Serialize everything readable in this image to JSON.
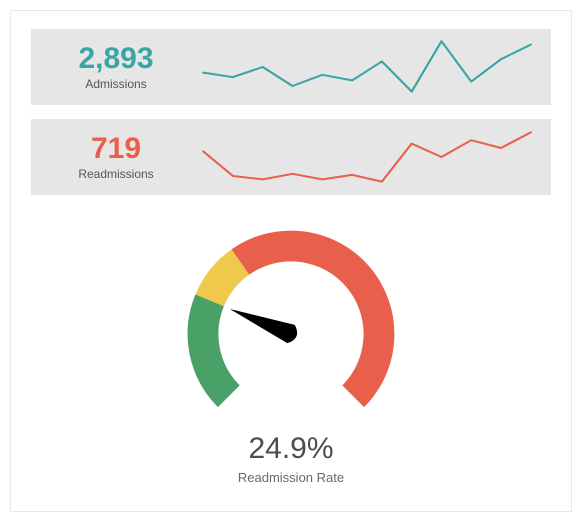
{
  "card_bg": "#e6e6e6",
  "admissions": {
    "value": "2,893",
    "label": "Admissions",
    "color": "#3aa5a5",
    "value_fontsize": 30,
    "label_fontsize": 12,
    "spark": {
      "type": "line",
      "stroke_width": 2,
      "color": "#3aa5a5",
      "y_values": [
        50,
        46,
        55,
        38,
        48,
        43,
        60,
        33,
        78,
        42,
        62,
        75
      ],
      "y_min": 30,
      "y_max": 80
    }
  },
  "readmissions": {
    "value": "719",
    "label": "Readmissions",
    "color": "#e8604c",
    "value_fontsize": 30,
    "label_fontsize": 12,
    "spark": {
      "type": "line",
      "stroke_width": 2,
      "color": "#e8604c",
      "y_values": [
        55,
        33,
        30,
        35,
        30,
        34,
        28,
        62,
        50,
        65,
        58,
        72
      ],
      "y_min": 25,
      "y_max": 75
    }
  },
  "gauge": {
    "type": "gauge",
    "value_text": "24.9%",
    "label": "Readmission Rate",
    "value": 24.9,
    "min": 0,
    "max": 100,
    "start_angle_deg": 135,
    "end_angle_deg": 405,
    "segments": [
      {
        "from": 0,
        "to": 25,
        "color": "#4aa168"
      },
      {
        "from": 25,
        "to": 37,
        "color": "#efc94c"
      },
      {
        "from": 37,
        "to": 100,
        "color": "#e8604c"
      }
    ],
    "track_width": 28,
    "needle_color": "#000000",
    "needle_length": 60,
    "value_fontsize": 30,
    "value_color": "#4d4d4d",
    "label_fontsize": 13,
    "label_color": "#6a6a6a"
  }
}
